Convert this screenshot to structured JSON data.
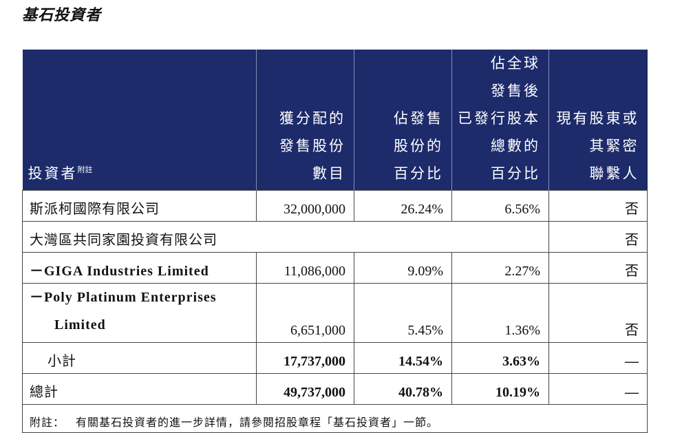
{
  "header": {
    "title": "基石投資者"
  },
  "table": {
    "headers": [
      {
        "text": "投資者",
        "note": "附註"
      },
      [
        "獲分配的",
        "發售股份",
        "數目"
      ],
      [
        "佔發售",
        "股份的",
        "百分比"
      ],
      [
        "佔全球",
        "發售後",
        "已發行股本",
        "總數的",
        "百分比"
      ],
      [
        "現有股東或",
        "其緊密",
        "聯繫人"
      ]
    ],
    "rows": [
      [
        "斯派柯國際有限公司",
        "32,000,000",
        "26.24%",
        "6.56%",
        "否"
      ],
      [
        "大灣區共同家園投資有限公司",
        "否"
      ],
      [
        "－GIGA Industries Limited",
        "11,086,000",
        "9.09%",
        "2.27%",
        "否"
      ],
      [
        [
          "－Poly Platinum Enterprises",
          "Limited"
        ],
        "6,651,000",
        "5.45%",
        "1.36%",
        "否"
      ],
      [
        "小計",
        "17,737,000",
        "14.54%",
        "3.63%",
        "—"
      ],
      [
        "總計",
        "49,737,000",
        "40.78%",
        "10.19%",
        "—"
      ]
    ],
    "note": {
      "label": "附註：",
      "text": "有關基石投資者的進一步詳情，請參閱招股章程「基石投資者」一節。"
    }
  }
}
